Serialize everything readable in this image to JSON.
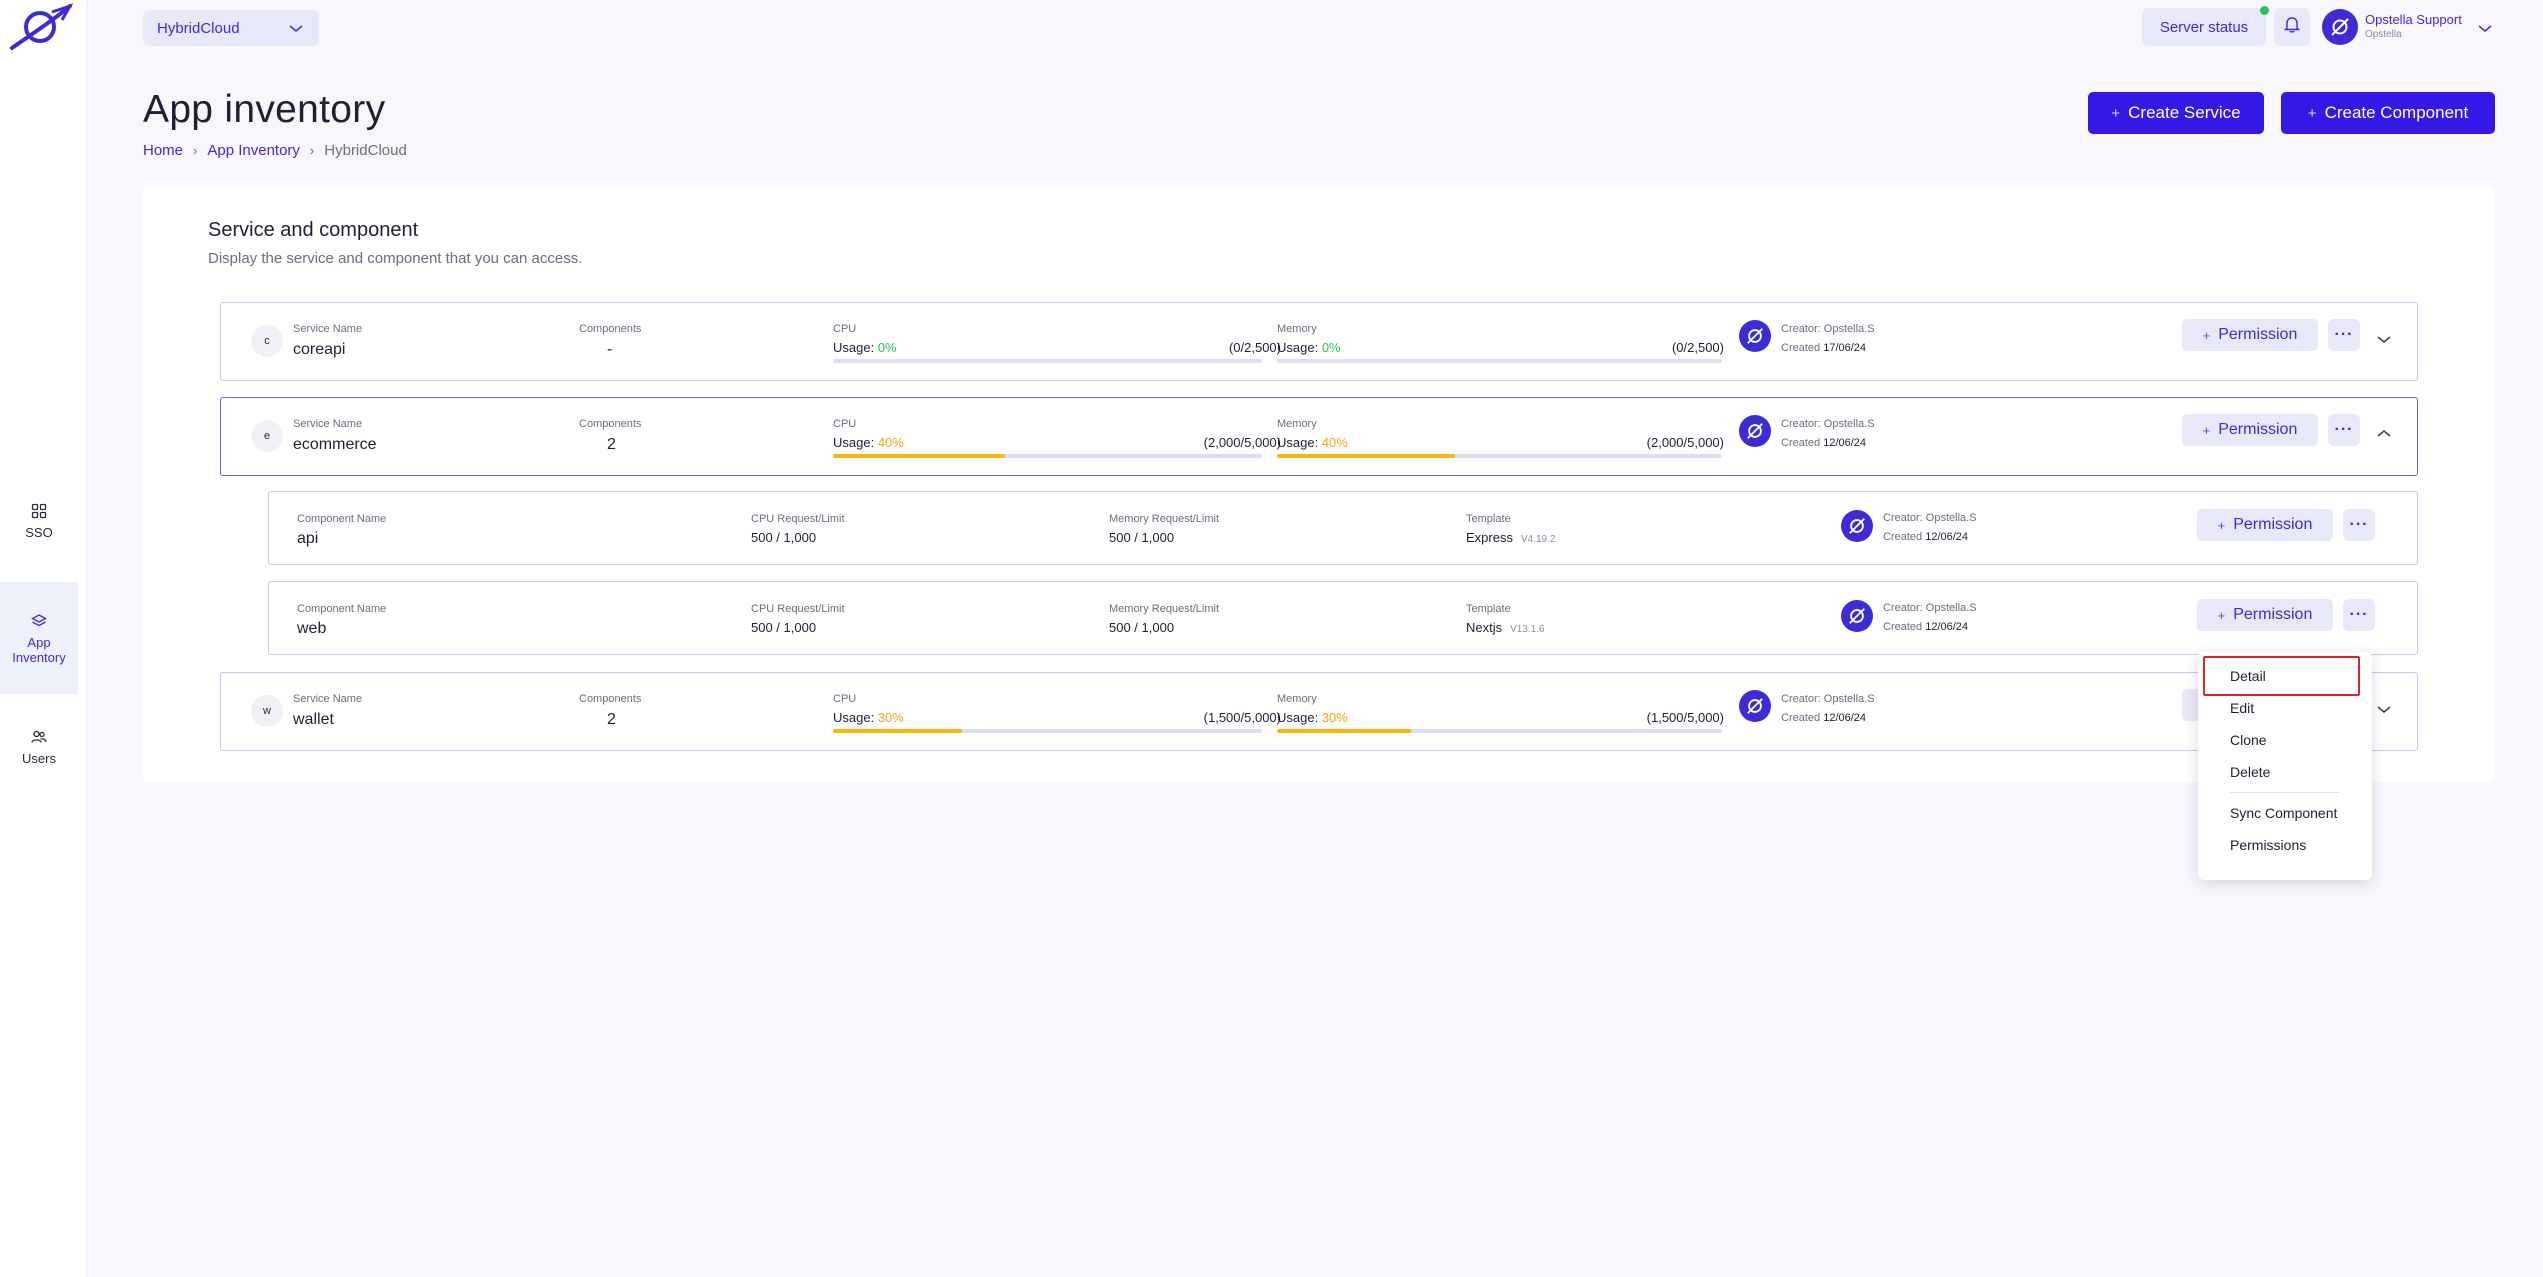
{
  "sidebar": {
    "items": [
      {
        "label": "SSO"
      },
      {
        "label": "App\nInventory"
      },
      {
        "label": "Users"
      }
    ]
  },
  "topbar": {
    "env": "HybridCloud",
    "server_status": "Server status",
    "user_name": "Opstella Support",
    "user_org": "Opstella"
  },
  "header": {
    "title": "App inventory",
    "breadcrumb": [
      "Home",
      "App Inventory",
      "HybridCloud"
    ],
    "create_service": "Create Service",
    "create_component": "Create Component"
  },
  "card": {
    "title": "Service and component",
    "subtitle": "Display the service and component that you can access."
  },
  "labels": {
    "service_name": "Service Name",
    "components": "Components",
    "cpu": "CPU",
    "memory": "Memory",
    "usage": "Usage:",
    "component_name": "Component Name",
    "cpu_req": "CPU Request/Limit",
    "mem_req": "Memory Request/Limit",
    "template": "Template",
    "created": "Created",
    "permission": "Permission"
  },
  "services": [
    {
      "badge": "c",
      "name": "coreapi",
      "components": "-",
      "cpu_pct": "0%",
      "cpu_range": "(0/2,500)",
      "cpu_fill": 0,
      "mem_pct": "0%",
      "mem_range": "(0/2,500)",
      "mem_fill": 0,
      "creator": "Creator: Opstella.S",
      "created": "17/06/24"
    },
    {
      "badge": "e",
      "name": "ecommerce",
      "components": "2",
      "cpu_pct": "40%",
      "cpu_range": "(2,000/5,000)",
      "cpu_fill": 0.4,
      "mem_pct": "40%",
      "mem_range": "(2,000/5,000)",
      "mem_fill": 0.4,
      "creator": "Creator: Opstella.S",
      "created": "12/06/24"
    },
    {
      "badge": "w",
      "name": "wallet",
      "components": "2",
      "cpu_pct": "30%",
      "cpu_range": "(1,500/5,000)",
      "cpu_fill": 0.3,
      "mem_pct": "30%",
      "mem_range": "(1,500/5,000)",
      "mem_fill": 0.3,
      "creator": "Creator: Opstella.S",
      "created": "12/06/24"
    }
  ],
  "components": [
    {
      "name": "api",
      "cpu": "500 / 1,000",
      "mem": "500 / 1,000",
      "template": "Express",
      "version": "V4.19.2",
      "creator": "Creator: Opstella.S",
      "created": "12/06/24"
    },
    {
      "name": "web",
      "cpu": "500 / 1,000",
      "mem": "500 / 1,000",
      "template": "Nextjs",
      "version": "V13.1.6",
      "creator": "Creator: Opstella.S",
      "created": "12/06/24"
    }
  ],
  "menu": {
    "items": [
      "Detail",
      "Edit",
      "Clone",
      "Delete",
      "Sync Component",
      "Permissions"
    ]
  },
  "colors": {
    "brand": "#3d2bd6",
    "primary_button": "#3418e6",
    "usage_bar": "#fbb40c",
    "usage_zero": "#22c55e",
    "highlight_border": "#dc2626"
  }
}
